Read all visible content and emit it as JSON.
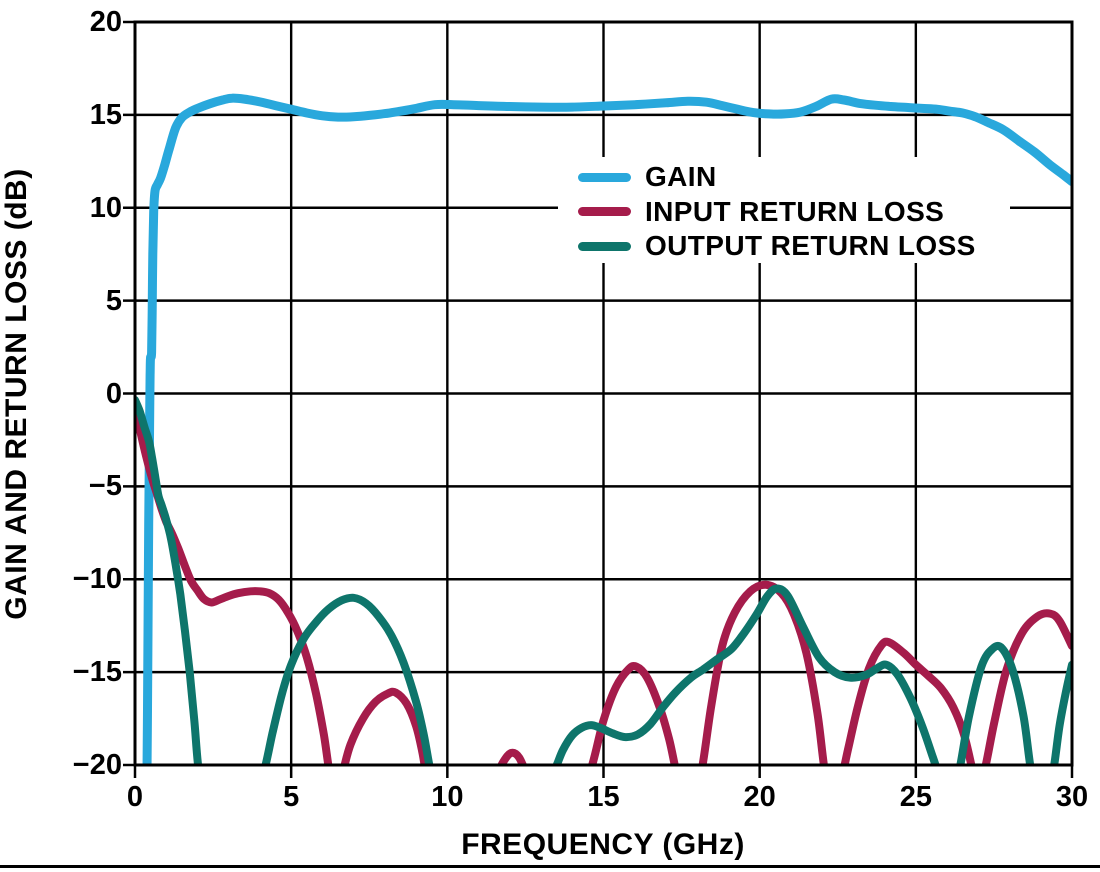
{
  "chart_data": {
    "type": "line",
    "title": "",
    "xlabel": "FREQUENCY (GHz)",
    "ylabel": "GAIN AND RETURN LOSS (dB)",
    "xlim": [
      0,
      30
    ],
    "ylim": [
      -20,
      20
    ],
    "grid": true,
    "grid_color": "#000000",
    "axis_color": "#000000",
    "background": "#ffffff",
    "legend_position": "inside upper-center-right",
    "x_ticks": [
      {
        "value": 0,
        "label": "0"
      },
      {
        "value": 5,
        "label": "5"
      },
      {
        "value": 10,
        "label": "10"
      },
      {
        "value": 15,
        "label": "15"
      },
      {
        "value": 20,
        "label": "20"
      },
      {
        "value": 25,
        "label": "25"
      },
      {
        "value": 30,
        "label": "30"
      }
    ],
    "y_ticks": [
      {
        "value": 20,
        "label": "20"
      },
      {
        "value": 15,
        "label": "15"
      },
      {
        "value": 10,
        "label": "10"
      },
      {
        "value": 5,
        "label": "5"
      },
      {
        "value": 0,
        "label": "0"
      },
      {
        "value": -5,
        "label": "−5"
      },
      {
        "value": -10,
        "label": "−10"
      },
      {
        "value": -15,
        "label": "−15"
      },
      {
        "value": -20,
        "label": "−20"
      }
    ],
    "series": [
      {
        "name": "GAIN",
        "color": "#29A8DC",
        "stroke_width": 9,
        "points": [
          [
            0.38,
            -21
          ],
          [
            0.4,
            -17
          ],
          [
            0.42,
            -12
          ],
          [
            0.44,
            -7
          ],
          [
            0.46,
            -3
          ],
          [
            0.475,
            -0.5
          ],
          [
            0.485,
            1.0
          ],
          [
            0.495,
            1.9
          ],
          [
            0.53,
            2.2
          ],
          [
            0.55,
            4.5
          ],
          [
            0.57,
            7.5
          ],
          [
            0.6,
            9.8
          ],
          [
            0.64,
            10.9
          ],
          [
            0.72,
            11.25
          ],
          [
            0.82,
            11.6
          ],
          [
            0.95,
            12.3
          ],
          [
            1.1,
            13.2
          ],
          [
            1.3,
            14.3
          ],
          [
            1.5,
            14.85
          ],
          [
            1.75,
            15.15
          ],
          [
            2.0,
            15.35
          ],
          [
            2.4,
            15.6
          ],
          [
            2.8,
            15.8
          ],
          [
            3.1,
            15.9
          ],
          [
            3.5,
            15.85
          ],
          [
            4.0,
            15.7
          ],
          [
            4.5,
            15.5
          ],
          [
            5.0,
            15.3
          ],
          [
            5.5,
            15.1
          ],
          [
            6.0,
            14.95
          ],
          [
            6.5,
            14.88
          ],
          [
            7.0,
            14.9
          ],
          [
            7.5,
            14.97
          ],
          [
            8.0,
            15.07
          ],
          [
            8.5,
            15.2
          ],
          [
            9.0,
            15.35
          ],
          [
            9.6,
            15.55
          ],
          [
            10.2,
            15.55
          ],
          [
            11.0,
            15.5
          ],
          [
            12.0,
            15.45
          ],
          [
            13.0,
            15.42
          ],
          [
            14.0,
            15.42
          ],
          [
            15.0,
            15.48
          ],
          [
            16.0,
            15.55
          ],
          [
            17.0,
            15.65
          ],
          [
            17.7,
            15.73
          ],
          [
            18.3,
            15.68
          ],
          [
            18.8,
            15.5
          ],
          [
            19.3,
            15.3
          ],
          [
            19.8,
            15.12
          ],
          [
            20.3,
            15.05
          ],
          [
            20.8,
            15.05
          ],
          [
            21.3,
            15.15
          ],
          [
            21.8,
            15.45
          ],
          [
            22.3,
            15.85
          ],
          [
            22.7,
            15.8
          ],
          [
            23.2,
            15.62
          ],
          [
            23.7,
            15.52
          ],
          [
            24.2,
            15.45
          ],
          [
            24.7,
            15.4
          ],
          [
            25.2,
            15.35
          ],
          [
            25.7,
            15.3
          ],
          [
            26.1,
            15.2
          ],
          [
            26.5,
            15.1
          ],
          [
            26.9,
            14.9
          ],
          [
            27.3,
            14.6
          ],
          [
            27.8,
            14.2
          ],
          [
            28.3,
            13.6
          ],
          [
            28.8,
            13.0
          ],
          [
            29.3,
            12.3
          ],
          [
            29.7,
            11.8
          ],
          [
            30,
            11.4
          ]
        ]
      },
      {
        "name": "INPUT RETURN LOSS",
        "color": "#A51C4B",
        "stroke_width": 8,
        "points": [
          [
            0,
            -0.9
          ],
          [
            0.15,
            -1.9
          ],
          [
            0.3,
            -3.0
          ],
          [
            0.45,
            -4.0
          ],
          [
            0.55,
            -4.6
          ],
          [
            0.7,
            -5.4
          ],
          [
            0.85,
            -6.2
          ],
          [
            1.0,
            -6.9
          ],
          [
            1.2,
            -7.6
          ],
          [
            1.4,
            -8.4
          ],
          [
            1.6,
            -9.3
          ],
          [
            1.8,
            -10.1
          ],
          [
            2.0,
            -10.6
          ],
          [
            2.2,
            -11.05
          ],
          [
            2.45,
            -11.25
          ],
          [
            2.7,
            -11.1
          ],
          [
            3.0,
            -10.9
          ],
          [
            3.3,
            -10.75
          ],
          [
            3.7,
            -10.65
          ],
          [
            4.0,
            -10.65
          ],
          [
            4.3,
            -10.75
          ],
          [
            4.6,
            -11.1
          ],
          [
            4.9,
            -11.8
          ],
          [
            5.2,
            -12.8
          ],
          [
            5.5,
            -14.2
          ],
          [
            5.8,
            -16.2
          ],
          [
            6.05,
            -18.4
          ],
          [
            6.25,
            -20.6
          ],
          [
            6.45,
            -21.5
          ],
          [
            6.65,
            -20.4
          ],
          [
            6.9,
            -18.9
          ],
          [
            7.3,
            -17.5
          ],
          [
            7.7,
            -16.6
          ],
          [
            8.1,
            -16.15
          ],
          [
            8.35,
            -16.1
          ],
          [
            8.7,
            -16.7
          ],
          [
            9.0,
            -17.9
          ],
          [
            9.2,
            -19.3
          ],
          [
            9.4,
            -21.0
          ],
          [
            9.8,
            -21.8
          ],
          [
            10.4,
            -22.0
          ],
          [
            11.0,
            -21.8
          ],
          [
            11.55,
            -20.6
          ],
          [
            11.8,
            -19.8
          ],
          [
            12.05,
            -19.35
          ],
          [
            12.3,
            -19.6
          ],
          [
            12.6,
            -20.7
          ],
          [
            13.0,
            -21.8
          ],
          [
            13.6,
            -22.0
          ],
          [
            14.2,
            -21.4
          ],
          [
            14.6,
            -20.2
          ],
          [
            15.0,
            -17.6
          ],
          [
            15.4,
            -15.8
          ],
          [
            15.8,
            -14.85
          ],
          [
            16.05,
            -14.7
          ],
          [
            16.4,
            -15.3
          ],
          [
            16.8,
            -16.9
          ],
          [
            17.1,
            -18.6
          ],
          [
            17.35,
            -20.5
          ],
          [
            17.6,
            -21.7
          ],
          [
            17.9,
            -21.3
          ],
          [
            18.15,
            -20.2
          ],
          [
            18.45,
            -16.8
          ],
          [
            18.8,
            -13.6
          ],
          [
            19.2,
            -11.8
          ],
          [
            19.7,
            -10.65
          ],
          [
            20.2,
            -10.3
          ],
          [
            20.7,
            -10.75
          ],
          [
            21.1,
            -11.9
          ],
          [
            21.5,
            -14.0
          ],
          [
            21.85,
            -17.2
          ],
          [
            22.1,
            -20.5
          ],
          [
            22.35,
            -21.6
          ],
          [
            22.6,
            -20.8
          ],
          [
            22.85,
            -19.0
          ],
          [
            23.15,
            -16.8
          ],
          [
            23.5,
            -14.8
          ],
          [
            23.9,
            -13.55
          ],
          [
            24.15,
            -13.4
          ],
          [
            24.6,
            -13.95
          ],
          [
            25.0,
            -14.6
          ],
          [
            25.4,
            -15.2
          ],
          [
            25.8,
            -15.85
          ],
          [
            26.2,
            -16.9
          ],
          [
            26.55,
            -18.4
          ],
          [
            26.85,
            -20.5
          ],
          [
            27.0,
            -21.0
          ],
          [
            27.2,
            -20.3
          ],
          [
            27.5,
            -17.8
          ],
          [
            27.9,
            -14.9
          ],
          [
            28.4,
            -12.9
          ],
          [
            28.9,
            -12.0
          ],
          [
            29.3,
            -11.85
          ],
          [
            29.6,
            -12.25
          ],
          [
            30,
            -13.6
          ]
        ]
      },
      {
        "name": "OUTPUT RETURN LOSS",
        "color": "#0E756B",
        "stroke_width": 8,
        "points": [
          [
            0,
            -0.35
          ],
          [
            0.15,
            -0.95
          ],
          [
            0.3,
            -1.8
          ],
          [
            0.45,
            -2.6
          ],
          [
            0.55,
            -3.5
          ],
          [
            0.65,
            -4.5
          ],
          [
            0.75,
            -5.5
          ],
          [
            0.85,
            -6.0
          ],
          [
            1.0,
            -6.8
          ],
          [
            1.15,
            -7.8
          ],
          [
            1.3,
            -9.2
          ],
          [
            1.45,
            -10.8
          ],
          [
            1.6,
            -12.8
          ],
          [
            1.75,
            -15.0
          ],
          [
            1.9,
            -17.6
          ],
          [
            2.05,
            -20.4
          ],
          [
            2.3,
            -21.8
          ],
          [
            2.8,
            -22.3
          ],
          [
            3.4,
            -22.3
          ],
          [
            3.9,
            -21.2
          ],
          [
            4.15,
            -20.2
          ],
          [
            4.4,
            -18.3
          ],
          [
            4.7,
            -16.2
          ],
          [
            5.0,
            -14.6
          ],
          [
            5.4,
            -13.2
          ],
          [
            5.8,
            -12.3
          ],
          [
            6.2,
            -11.6
          ],
          [
            6.6,
            -11.15
          ],
          [
            7.0,
            -11.0
          ],
          [
            7.4,
            -11.3
          ],
          [
            7.8,
            -12.0
          ],
          [
            8.2,
            -13.0
          ],
          [
            8.6,
            -14.5
          ],
          [
            9.0,
            -16.6
          ],
          [
            9.25,
            -18.4
          ],
          [
            9.5,
            -20.6
          ],
          [
            9.8,
            -21.8
          ],
          [
            10.5,
            -22.3
          ],
          [
            11.5,
            -22.3
          ],
          [
            12.5,
            -22.0
          ],
          [
            13.1,
            -21.2
          ],
          [
            13.45,
            -20.2
          ],
          [
            13.7,
            -19.2
          ],
          [
            14.0,
            -18.4
          ],
          [
            14.3,
            -18.0
          ],
          [
            14.6,
            -17.85
          ],
          [
            14.9,
            -18.0
          ],
          [
            15.3,
            -18.3
          ],
          [
            15.7,
            -18.5
          ],
          [
            16.1,
            -18.35
          ],
          [
            16.5,
            -17.8
          ],
          [
            16.9,
            -16.9
          ],
          [
            17.3,
            -16.1
          ],
          [
            17.8,
            -15.3
          ],
          [
            18.2,
            -14.85
          ],
          [
            18.6,
            -14.35
          ],
          [
            19.1,
            -13.75
          ],
          [
            19.5,
            -12.9
          ],
          [
            19.9,
            -11.9
          ],
          [
            20.25,
            -10.9
          ],
          [
            20.55,
            -10.5
          ],
          [
            20.9,
            -10.9
          ],
          [
            21.4,
            -12.6
          ],
          [
            21.9,
            -14.2
          ],
          [
            22.4,
            -15.0
          ],
          [
            22.9,
            -15.3
          ],
          [
            23.4,
            -15.15
          ],
          [
            23.75,
            -14.8
          ],
          [
            24.05,
            -14.6
          ],
          [
            24.4,
            -15.1
          ],
          [
            24.8,
            -16.3
          ],
          [
            25.2,
            -17.9
          ],
          [
            25.55,
            -19.6
          ],
          [
            25.8,
            -20.8
          ],
          [
            26.05,
            -21.5
          ],
          [
            26.35,
            -20.6
          ],
          [
            26.7,
            -17.4
          ],
          [
            27.1,
            -14.7
          ],
          [
            27.45,
            -13.75
          ],
          [
            27.75,
            -13.7
          ],
          [
            28.1,
            -14.9
          ],
          [
            28.45,
            -17.4
          ],
          [
            28.7,
            -20.4
          ],
          [
            28.95,
            -21.5
          ],
          [
            29.2,
            -21.3
          ],
          [
            29.4,
            -20.3
          ],
          [
            29.6,
            -17.9
          ],
          [
            29.8,
            -16.1
          ],
          [
            30,
            -14.6
          ]
        ]
      }
    ]
  }
}
